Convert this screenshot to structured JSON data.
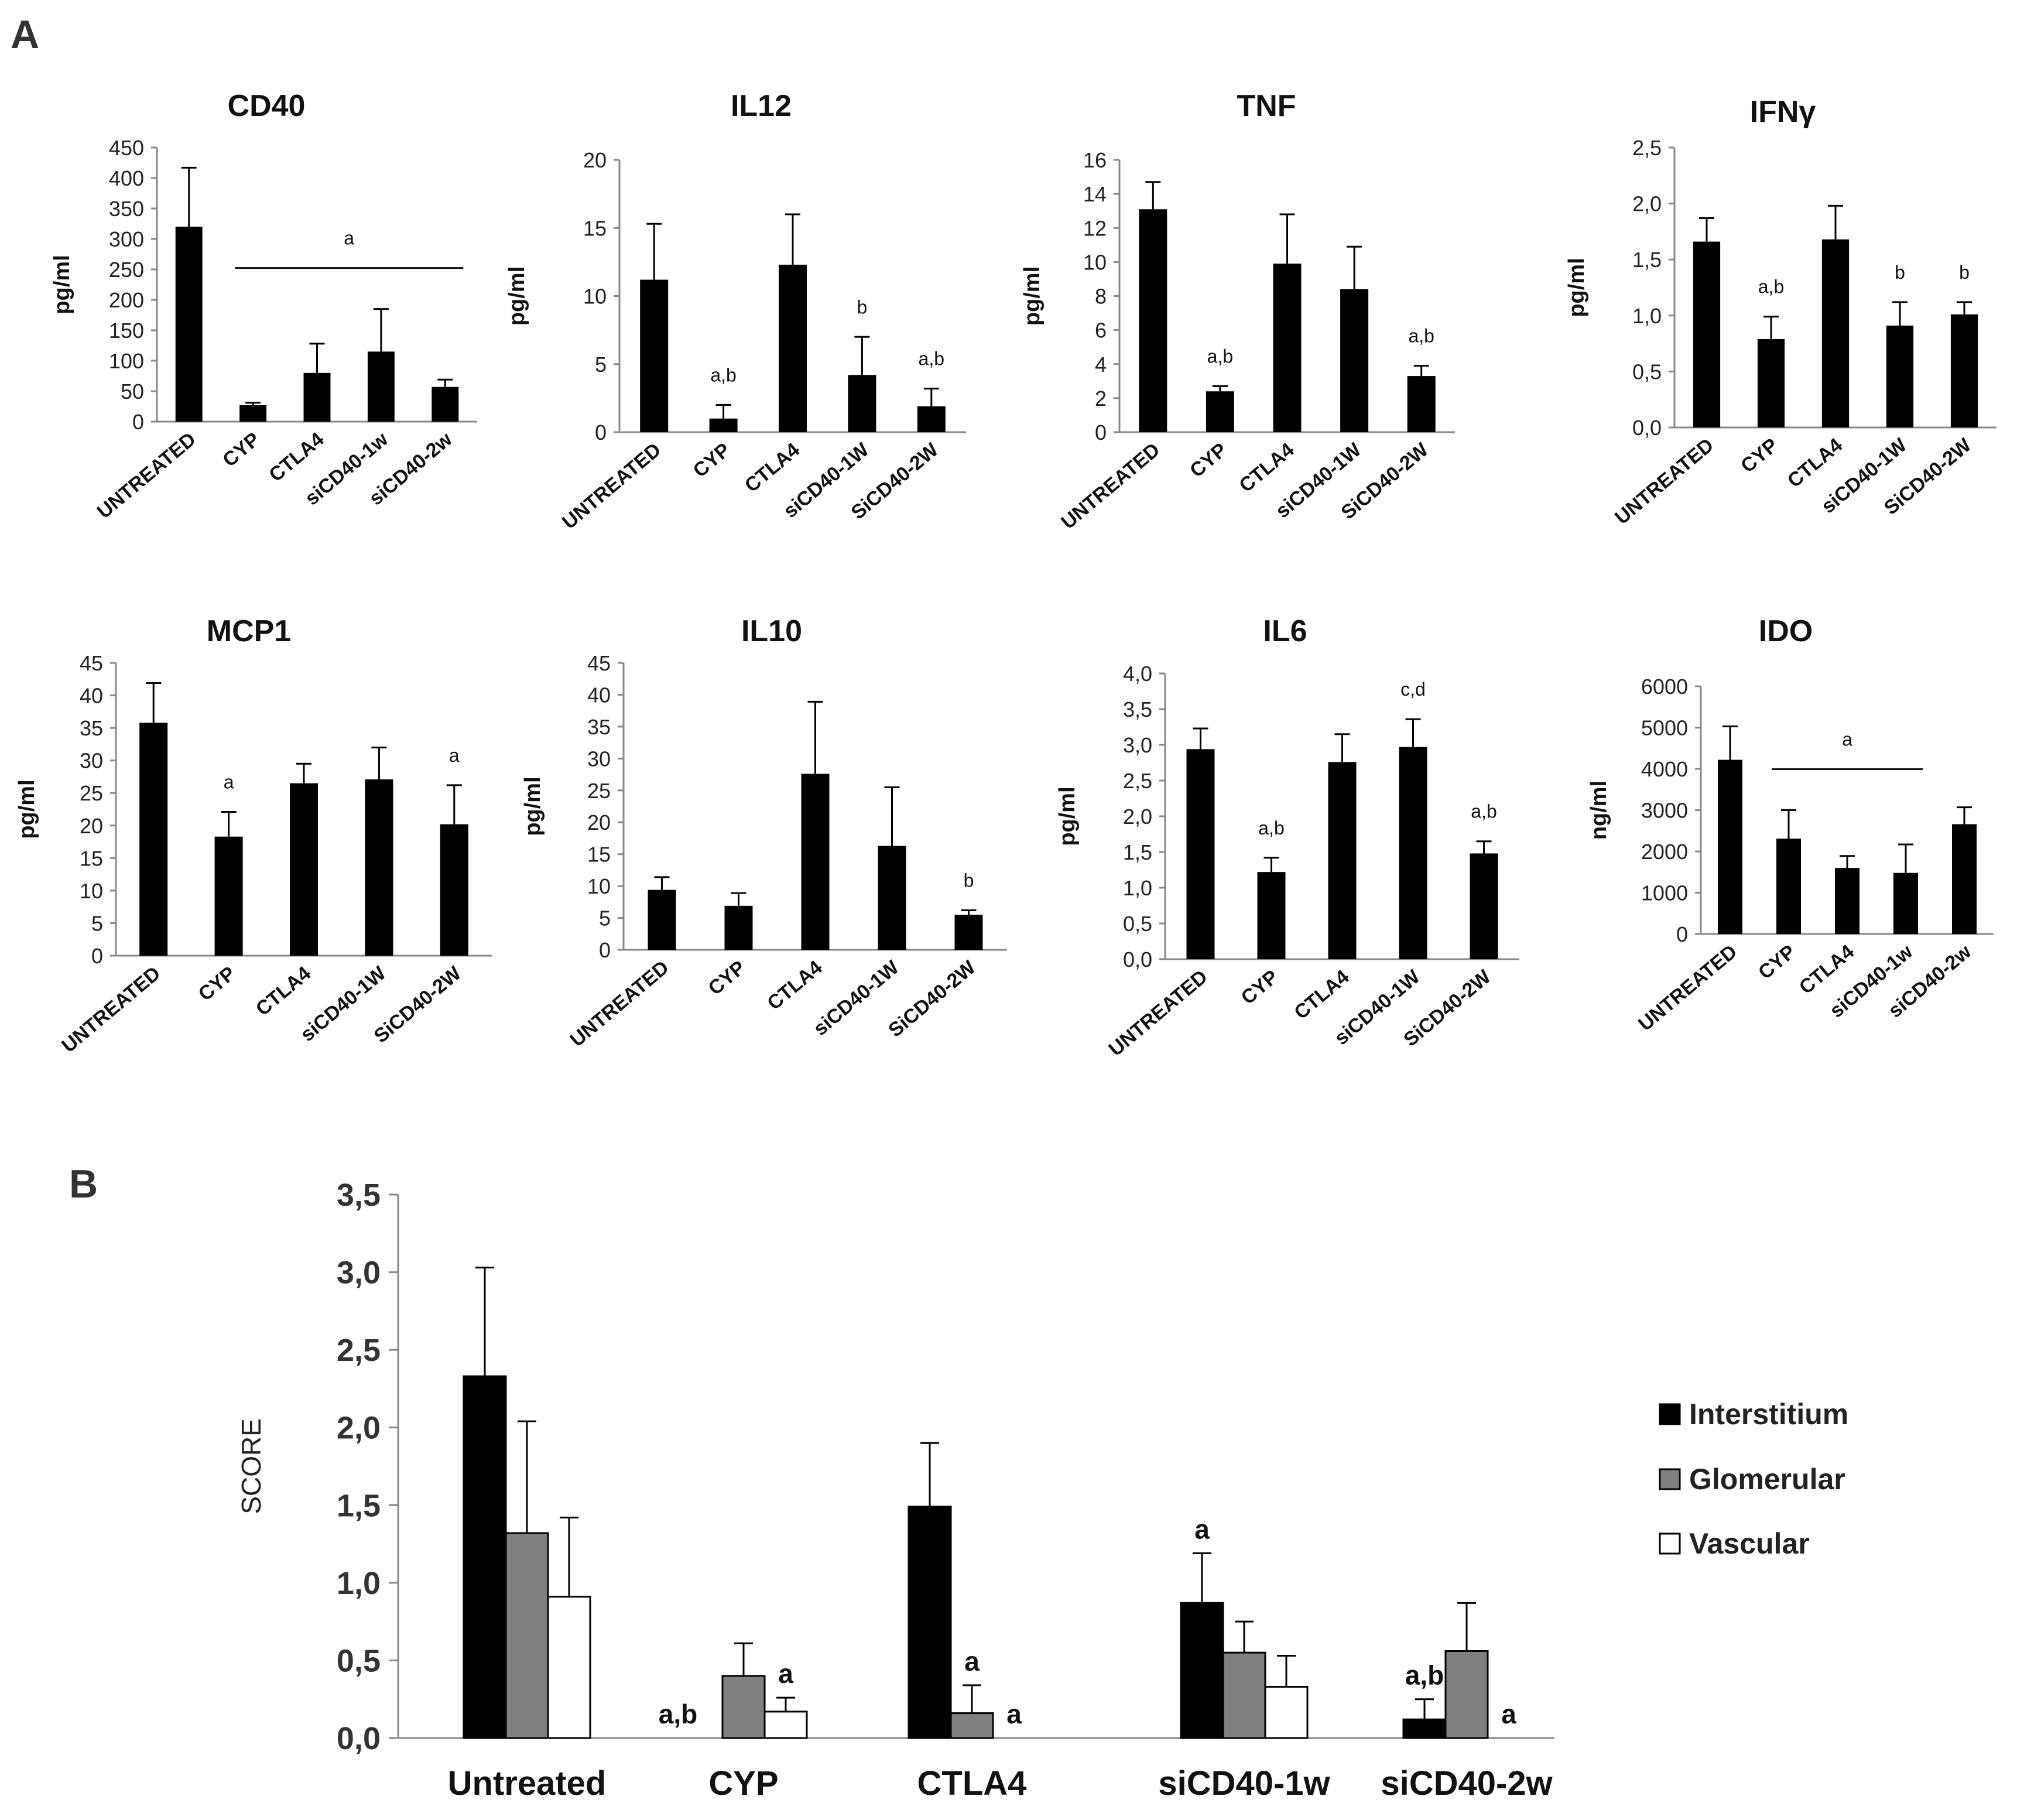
{
  "figure": {
    "panel_a_label": "A",
    "panel_b_label": "B",
    "colors": {
      "bar_black": "#000000",
      "bar_gray": "#808080",
      "bar_white": "#ffffff",
      "axis": "#888888",
      "text": "#222222"
    }
  },
  "chart_data": [
    {
      "panel": "A",
      "type": "bar",
      "title": "CD40",
      "ylabel": "pg/ml",
      "categories": [
        "UNTREATED",
        "CYP",
        "CTLA4",
        "siCD40-1w",
        "siCD40-2w"
      ],
      "values": [
        320,
        27,
        80,
        115,
        57
      ],
      "errors": [
        97,
        4,
        48,
        70,
        12
      ],
      "ylim": [
        0,
        450
      ],
      "yticks": [
        "0",
        "50",
        "100",
        "150",
        "200",
        "250",
        "300",
        "350",
        "400",
        "450"
      ],
      "annotations": [
        {
          "text": "a",
          "bracket": [
            1,
            4
          ]
        }
      ]
    },
    {
      "panel": "A",
      "type": "bar",
      "title": "IL12",
      "ylabel": "pg/ml",
      "categories": [
        "UNTREATED",
        "CYP",
        "CTLA4",
        "siCD40-1W",
        "SiCD40-2W"
      ],
      "values": [
        11.2,
        1.0,
        12.3,
        4.2,
        1.9
      ],
      "errors": [
        4.1,
        1.0,
        3.7,
        2.8,
        1.3
      ],
      "ylim": [
        0,
        20
      ],
      "yticks": [
        "0",
        "5",
        "10",
        "15",
        "20"
      ],
      "annotations": [
        {
          "text": "a,b",
          "bar": 1
        },
        {
          "text": "b",
          "bar": 3
        },
        {
          "text": "a,b",
          "bar": 4
        }
      ]
    },
    {
      "panel": "A",
      "type": "bar",
      "title": "TNF",
      "ylabel": "pg/ml",
      "categories": [
        "UNTREATED",
        "CYP",
        "CTLA4",
        "siCD40-1W",
        "SiCD40-2W"
      ],
      "values": [
        13.1,
        2.4,
        9.9,
        8.4,
        3.3
      ],
      "errors": [
        1.6,
        0.3,
        2.9,
        2.5,
        0.6
      ],
      "ylim": [
        0,
        16
      ],
      "yticks": [
        "0",
        "2",
        "4",
        "6",
        "8",
        "10",
        "12",
        "14",
        "16"
      ],
      "annotations": [
        {
          "text": "a,b",
          "bar": 1
        },
        {
          "text": "a,b",
          "bar": 4
        }
      ]
    },
    {
      "panel": "A",
      "type": "bar",
      "title": "IFNγ",
      "ylabel": "pg/ml",
      "categories": [
        "UNTREATED",
        "CYP",
        "CTLA4",
        "siCD40-1W",
        "SiCD40-2W"
      ],
      "values": [
        1.66,
        0.79,
        1.68,
        0.91,
        1.01
      ],
      "errors": [
        0.21,
        0.2,
        0.3,
        0.21,
        0.11
      ],
      "ylim": [
        0,
        2.5
      ],
      "yticks": [
        "0,0",
        "0,5",
        "1,0",
        "1,5",
        "2,0",
        "2,5"
      ],
      "annotations": [
        {
          "text": "a,b",
          "bar": 1
        },
        {
          "text": "b",
          "bar": 3
        },
        {
          "text": "b",
          "bar": 4
        }
      ]
    },
    {
      "panel": "A",
      "type": "bar",
      "title": "MCP1",
      "ylabel": "pg/ml",
      "categories": [
        "UNTREATED",
        "CYP",
        "CTLA4",
        "siCD40-1W",
        "SiCD40-2W"
      ],
      "values": [
        35.8,
        18.3,
        26.5,
        27.1,
        20.2
      ],
      "errors": [
        6.1,
        3.8,
        3.0,
        4.9,
        6.0
      ],
      "ylim": [
        0,
        45
      ],
      "yticks": [
        "0",
        "5",
        "10",
        "15",
        "20",
        "25",
        "30",
        "35",
        "40",
        "45"
      ],
      "annotations": [
        {
          "text": "a",
          "bar": 1
        },
        {
          "text": "a",
          "bar": 4
        }
      ]
    },
    {
      "panel": "A",
      "type": "bar",
      "title": "IL10",
      "ylabel": "pg/ml",
      "categories": [
        "UNTREATED",
        "CYP",
        "CTLA4",
        "siCD40-1W",
        "SiCD40-2W"
      ],
      "values": [
        9.4,
        6.9,
        27.6,
        16.3,
        5.5
      ],
      "errors": [
        2.0,
        2.0,
        11.3,
        9.2,
        0.7
      ],
      "ylim": [
        0,
        45
      ],
      "yticks": [
        "0",
        "5",
        "10",
        "15",
        "20",
        "25",
        "30",
        "35",
        "40",
        "45"
      ],
      "annotations": [
        {
          "text": "b",
          "bar": 4
        }
      ]
    },
    {
      "panel": "A",
      "type": "bar",
      "title": "IL6",
      "ylabel": "pg/ml",
      "categories": [
        "UNTREATED",
        "CYP",
        "CTLA4",
        "siCD40-1W",
        "SiCD40-2W"
      ],
      "values": [
        2.94,
        1.22,
        2.76,
        2.97,
        1.48
      ],
      "errors": [
        0.29,
        0.2,
        0.39,
        0.39,
        0.17
      ],
      "ylim": [
        0,
        4.0
      ],
      "yticks": [
        "0,0",
        "0,5",
        "1,0",
        "1,5",
        "2,0",
        "2,5",
        "3,0",
        "3,5",
        "4,0"
      ],
      "annotations": [
        {
          "text": "a,b",
          "bar": 1
        },
        {
          "text": "c,d",
          "bar": 3
        },
        {
          "text": "a,b",
          "bar": 4
        }
      ]
    },
    {
      "panel": "A",
      "type": "bar",
      "title": "IDO",
      "ylabel": "ng/ml",
      "categories": [
        "UNTREATED",
        "CYP",
        "CTLA4",
        "siCD40-1w",
        "siCD40-2w"
      ],
      "values": [
        4220,
        2310,
        1600,
        1480,
        2660
      ],
      "errors": [
        810,
        690,
        290,
        690,
        410
      ],
      "ylim": [
        0,
        6000
      ],
      "yticks": [
        "0",
        "1000",
        "2000",
        "3000",
        "4000",
        "5000",
        "6000"
      ],
      "annotations": [
        {
          "text": "a",
          "bracket": [
            1,
            3
          ]
        }
      ]
    },
    {
      "panel": "B",
      "type": "bar",
      "title": "",
      "ylabel": "SCORE",
      "categories": [
        "Untreated",
        "CYP",
        "CTLA4",
        "siCD40-1w",
        "siCD40-2w"
      ],
      "series": [
        {
          "name": "Interstitium",
          "values": [
            2.33,
            0,
            1.49,
            0.87,
            0.12
          ],
          "errors": [
            0.7,
            0,
            0.41,
            0.32,
            0.13
          ]
        },
        {
          "name": "Glomerular",
          "values": [
            1.32,
            0.4,
            0.16,
            0.55,
            0.56
          ],
          "errors": [
            0.72,
            0.21,
            0.18,
            0.2,
            0.31
          ]
        },
        {
          "name": "Vascular",
          "values": [
            0.91,
            0.17,
            0,
            0.33,
            0
          ],
          "errors": [
            0.51,
            0.09,
            0,
            0.2,
            0
          ]
        }
      ],
      "ylim": [
        0,
        3.5
      ],
      "yticks": [
        "0,0",
        "0,5",
        "1,0",
        "1,5",
        "2,0",
        "2,5",
        "3,0",
        "3,5"
      ],
      "legend_position": "right",
      "annotations": [
        {
          "text": "a,b",
          "group": 1,
          "series": 0
        },
        {
          "text": "a",
          "group": 1,
          "series": 2
        },
        {
          "text": "a",
          "group": 2,
          "series": 1
        },
        {
          "text": "a",
          "group": 2,
          "series": 2
        },
        {
          "text": "a",
          "group": 3,
          "series": 0
        },
        {
          "text": "a,b",
          "group": 4,
          "series": 0
        },
        {
          "text": "a",
          "group": 4,
          "series": 2
        }
      ]
    }
  ]
}
